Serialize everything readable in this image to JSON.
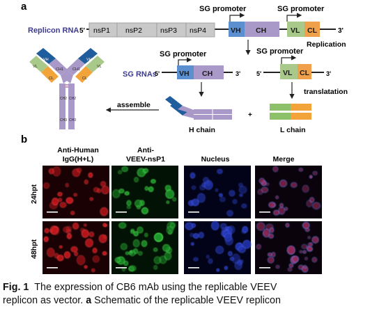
{
  "panel_a": {
    "label": "a",
    "replicon_label": "Replicon RNA",
    "five_prime": "5'",
    "three_prime": "3'",
    "nsp_genes": [
      "nsP1",
      "nsP2",
      "nsP3",
      "nsP4"
    ],
    "sg_promoter_1": "SG promoter",
    "sg_promoter_2": "SG promoter",
    "vh": "VH",
    "ch": "CH",
    "vl": "VL",
    "cl": "CL",
    "replication": "Replication",
    "sg_rnas_label": "SG RNAs",
    "sg_promoter_h": "SG promoter",
    "sg_promoter_l": "SG promoter",
    "translatation": "translatation",
    "assemble": "assemble",
    "plus": "+",
    "h_chain": "H chain",
    "l_chain": "L chain",
    "antibody": {
      "vh": "VH",
      "vl": "VL",
      "ch1": "CH1",
      "cl": "CL",
      "ch2": "CH2",
      "ch3": "CH3"
    },
    "colors": {
      "nsp": "#c9c9c9",
      "vh": "#5b8fd0",
      "ch": "#a999c8",
      "vl": "#a8c98a",
      "cl": "#f0a04b",
      "dark_blue": "#1f5d9c",
      "green": "#8cc16a",
      "orange": "#f2a43a",
      "label_blue": "#3d3b8e"
    }
  },
  "panel_b": {
    "label": "b",
    "columns": [
      "Anti-Human\nIgG(H+L)",
      "Anti-\nVEEV-nsP1",
      "Nucleus",
      "Merge"
    ],
    "rows": [
      "24hpt",
      "48hpt"
    ]
  },
  "caption": {
    "label": "Fig. 1",
    "line1": "The expression of CB6 mAb using the replicable VEEV",
    "line2_start": "replicon as vector.",
    "line2_label": "a",
    "line2_end": "Schematic of the replicable VEEV replicon"
  }
}
